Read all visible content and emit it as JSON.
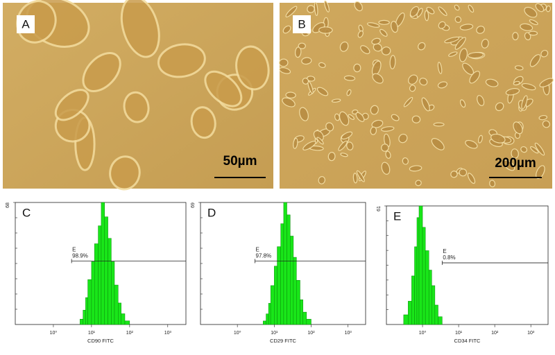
{
  "micrographs": [
    {
      "label": "A",
      "scale_bar": "50µm"
    },
    {
      "label": "B",
      "scale_bar": "200µm"
    }
  ],
  "chart_data": [
    {
      "type": "histogram",
      "panel": "C",
      "x_label": "CD90 FITC",
      "color": "#19e619",
      "log_x": true,
      "xlim": [
        0.1,
        3000
      ],
      "xticks": [
        {
          "value": 1,
          "label": "10⁰"
        },
        {
          "value": 10,
          "label": "10¹"
        },
        {
          "value": 100,
          "label": "10²"
        },
        {
          "value": 1000,
          "label": "10³"
        }
      ],
      "ylim": [
        0,
        68
      ],
      "yticks": [
        68
      ],
      "bins": [
        5,
        6,
        7,
        8,
        10,
        12,
        15,
        18,
        22,
        27,
        33,
        40,
        50,
        60,
        75,
        100
      ],
      "values": [
        3,
        8,
        15,
        25,
        35,
        45,
        55,
        68,
        60,
        48,
        35,
        22,
        12,
        6,
        2
      ],
      "gate_label": "E",
      "gate_value": "98.9%",
      "gate_start": 3
    },
    {
      "type": "histogram",
      "panel": "D",
      "x_label": "CD29 FITC",
      "color": "#19e619",
      "log_x": true,
      "xlim": [
        0.1,
        3000
      ],
      "xticks": [
        {
          "value": 1,
          "label": "10⁰"
        },
        {
          "value": 10,
          "label": "10¹"
        },
        {
          "value": 100,
          "label": "10²"
        },
        {
          "value": 1000,
          "label": "10³"
        }
      ],
      "ylim": [
        0,
        69
      ],
      "yticks": [
        69
      ],
      "bins": [
        5,
        6,
        7,
        8,
        10,
        12,
        15,
        18,
        22,
        27,
        33,
        40,
        50,
        60,
        75,
        100
      ],
      "values": [
        2,
        6,
        12,
        22,
        33,
        44,
        57,
        69,
        62,
        50,
        38,
        25,
        14,
        7,
        3
      ],
      "gate_label": "E",
      "gate_value": "97.8%",
      "gate_start": 3
    },
    {
      "type": "histogram",
      "panel": "E",
      "x_label": "CD34 FITC",
      "color": "#19e619",
      "log_x": true,
      "xlim": [
        0.1,
        3000
      ],
      "xticks": [
        {
          "value": 1,
          "label": "10⁰"
        },
        {
          "value": 10,
          "label": "10¹"
        },
        {
          "value": 100,
          "label": "10²"
        },
        {
          "value": 1000,
          "label": "10³"
        }
      ],
      "ylim": [
        0,
        61
      ],
      "yticks": [
        61
      ],
      "bins": [
        0.3,
        0.4,
        0.5,
        0.6,
        0.7,
        0.8,
        1,
        1.2,
        1.5,
        1.8,
        2.2,
        2.7,
        3.5
      ],
      "values": [
        5,
        12,
        25,
        40,
        55,
        61,
        50,
        38,
        28,
        20,
        10,
        4
      ],
      "gate_label": "E",
      "gate_value": "0.8%",
      "gate_start": 3.5
    }
  ]
}
